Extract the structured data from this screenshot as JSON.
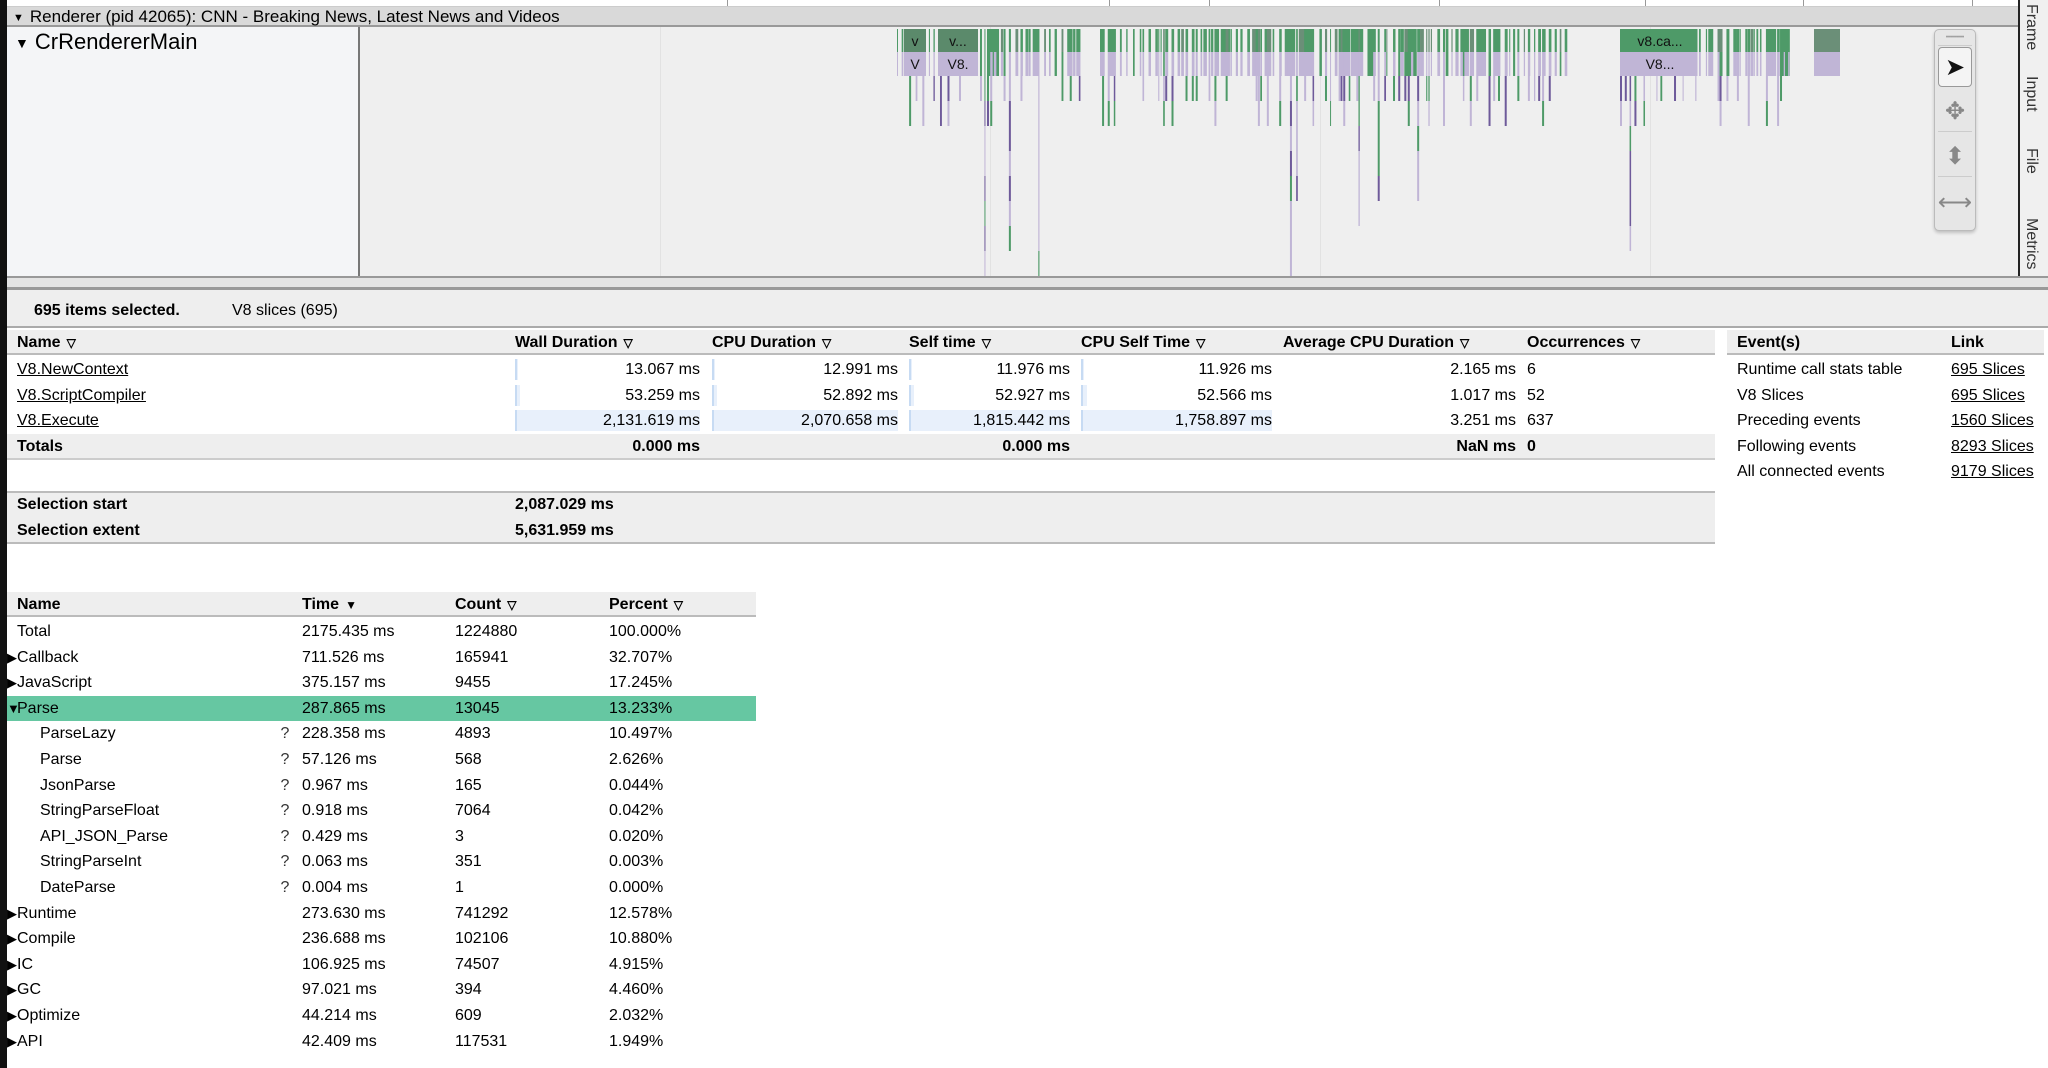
{
  "process_header": "Renderer (pid 42065): CNN - Breaking News, Latest News and Videos",
  "thread_name": "CrRendererMain",
  "slice_labels": [
    {
      "text": "v",
      "row": 0,
      "color": "#5b8a6b"
    },
    {
      "text": "V",
      "row": 1,
      "color": "#c0b5d6"
    },
    {
      "text": "v...",
      "row": 0,
      "color": "#5b8a6b"
    },
    {
      "text": "V8.",
      "row": 1,
      "color": "#c0b5d6"
    },
    {
      "text": "v8.ca...",
      "row": 0,
      "color": "#4e9a68"
    },
    {
      "text": "V8...",
      "row": 1,
      "color": "#c0b5d6"
    }
  ],
  "colors": {
    "slice_green": "#4e9a68",
    "slice_purple_light": "#c0b5d6",
    "slice_purple_dark": "#6e5a9a",
    "selected_row": "#66c7a2"
  },
  "side_tabs": [
    "Frame",
    "Input",
    "File",
    "Metrics"
  ],
  "tools": [
    "select-cursor-icon",
    "pan-icon",
    "zoom-icon",
    "timing-icon"
  ],
  "summary": {
    "selected": "695 items selected.",
    "tab": "V8 slices (695)"
  },
  "slices_table": {
    "headers": [
      "Name",
      "Wall Duration",
      "CPU Duration",
      "Self time",
      "CPU Self Time",
      "Average CPU Duration",
      "Occurrences"
    ],
    "sort_icon": "▽",
    "rows": [
      {
        "name": "V8.NewContext",
        "wall": "13.067 ms",
        "cpu": "12.991 ms",
        "self": "11.976 ms",
        "cpuself": "11.926 ms",
        "avg": "2.165 ms",
        "occ": "6",
        "frac": [
          0.006,
          0.006,
          0.0066,
          0.0068
        ]
      },
      {
        "name": "V8.ScriptCompiler",
        "wall": "53.259 ms",
        "cpu": "52.892 ms",
        "self": "52.927 ms",
        "cpuself": "52.566 ms",
        "avg": "1.017 ms",
        "occ": "52",
        "frac": [
          0.025,
          0.0255,
          0.029,
          0.03
        ]
      },
      {
        "name": "V8.Execute",
        "wall": "2,131.619 ms",
        "cpu": "2,070.658 ms",
        "self": "1,815.442 ms",
        "cpuself": "1,758.897 ms",
        "avg": "3.251 ms",
        "occ": "637",
        "frac": [
          1,
          1,
          1,
          1
        ]
      }
    ],
    "totals": {
      "label": "Totals",
      "wall": "0.000 ms",
      "self": "0.000 ms",
      "avg": "NaN ms",
      "occ": "0"
    }
  },
  "selection": [
    {
      "label": "Selection start",
      "value": "2,087.029 ms"
    },
    {
      "label": "Selection extent",
      "value": "5,631.959 ms"
    }
  ],
  "events_table": {
    "headers": [
      "Event(s)",
      "Link"
    ],
    "rows": [
      {
        "event": "Runtime call stats table",
        "link": "695 Slices"
      },
      {
        "event": "V8 Slices",
        "link": "695 Slices"
      },
      {
        "event": "Preceding events",
        "link": "1560 Slices"
      },
      {
        "event": "Following events",
        "link": "8293 Slices"
      },
      {
        "event": "All connected events",
        "link": "9179 Slices"
      }
    ]
  },
  "rcs_table": {
    "headers": [
      "Name",
      "Time",
      "Count",
      "Percent"
    ],
    "sort_active": "▼",
    "sort_icon": "▽",
    "help_icon": "?",
    "rows": [
      {
        "name": "Total",
        "time": "2175.435 ms",
        "count": "1224880",
        "percent": "100.000%",
        "level": 0,
        "expander": ""
      },
      {
        "name": "Callback",
        "time": "711.526 ms",
        "count": "165941",
        "percent": "32.707%",
        "level": 0,
        "expander": "▶"
      },
      {
        "name": "JavaScript",
        "time": "375.157 ms",
        "count": "9455",
        "percent": "17.245%",
        "level": 0,
        "expander": "▶"
      },
      {
        "name": "Parse",
        "time": "287.865 ms",
        "count": "13045",
        "percent": "13.233%",
        "level": 0,
        "expander": "▼",
        "selected": true
      },
      {
        "name": "ParseLazy",
        "time": "228.358 ms",
        "count": "4893",
        "percent": "10.497%",
        "level": 1,
        "expander": ""
      },
      {
        "name": "Parse",
        "time": "57.126 ms",
        "count": "568",
        "percent": "2.626%",
        "level": 1,
        "expander": ""
      },
      {
        "name": "JsonParse",
        "time": "0.967 ms",
        "count": "165",
        "percent": "0.044%",
        "level": 1,
        "expander": ""
      },
      {
        "name": "StringParseFloat",
        "time": "0.918 ms",
        "count": "7064",
        "percent": "0.042%",
        "level": 1,
        "expander": ""
      },
      {
        "name": "API_JSON_Parse",
        "time": "0.429 ms",
        "count": "3",
        "percent": "0.020%",
        "level": 1,
        "expander": ""
      },
      {
        "name": "StringParseInt",
        "time": "0.063 ms",
        "count": "351",
        "percent": "0.003%",
        "level": 1,
        "expander": ""
      },
      {
        "name": "DateParse",
        "time": "0.004 ms",
        "count": "1",
        "percent": "0.000%",
        "level": 1,
        "expander": ""
      },
      {
        "name": "Runtime",
        "time": "273.630 ms",
        "count": "741292",
        "percent": "12.578%",
        "level": 0,
        "expander": "▶"
      },
      {
        "name": "Compile",
        "time": "236.688 ms",
        "count": "102106",
        "percent": "10.880%",
        "level": 0,
        "expander": "▶"
      },
      {
        "name": "IC",
        "time": "106.925 ms",
        "count": "74507",
        "percent": "4.915%",
        "level": 0,
        "expander": "▶"
      },
      {
        "name": "GC",
        "time": "97.021 ms",
        "count": "394",
        "percent": "4.460%",
        "level": 0,
        "expander": "▶"
      },
      {
        "name": "Optimize",
        "time": "44.214 ms",
        "count": "609",
        "percent": "2.032%",
        "level": 0,
        "expander": "▶"
      },
      {
        "name": "API",
        "time": "42.409 ms",
        "count": "117531",
        "percent": "1.949%",
        "level": 0,
        "expander": "▶"
      }
    ]
  }
}
